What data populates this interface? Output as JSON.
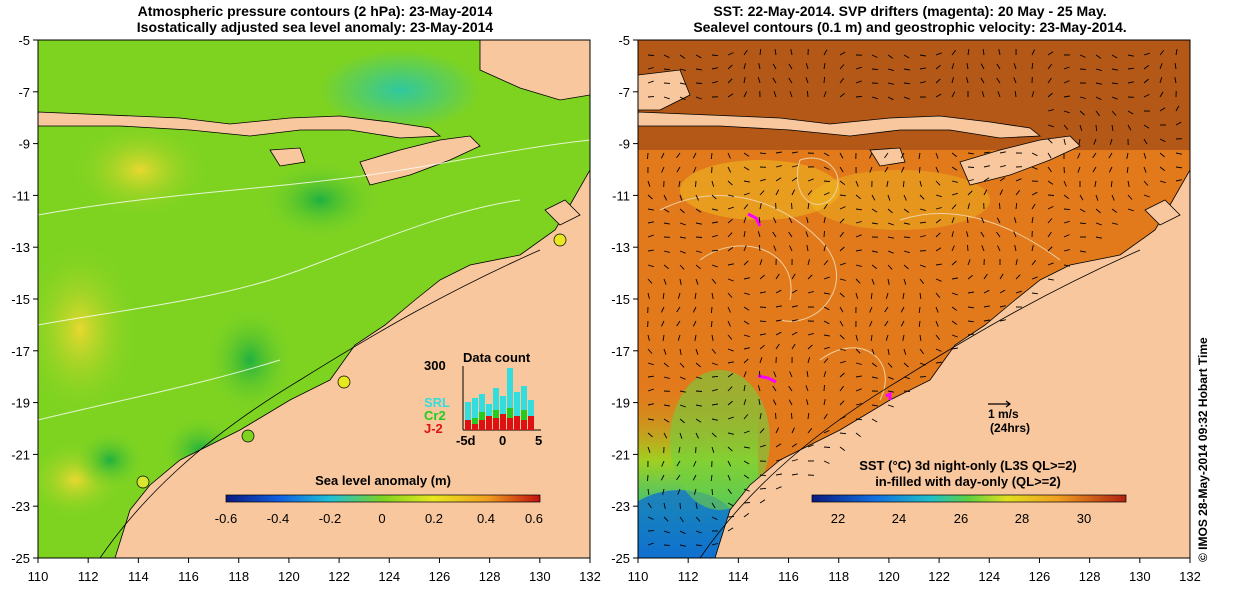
{
  "left_panel": {
    "title_line1": "Atmospheric pressure contours (2 hPa): 23-May-2014",
    "title_line2": "Isostatically adjusted sea level anomaly: 23-May-2014",
    "colorbar_title": "Sea level anomaly (m)",
    "colorbar_ticks": [
      "-0.6",
      "-0.4",
      "-0.2",
      "0",
      "0.2",
      "0.4",
      "0.6"
    ],
    "inset": {
      "title": "Data count",
      "y_max": "300",
      "x_ticks": [
        "-5d",
        "0",
        "5"
      ],
      "legend": [
        {
          "label": "SRL",
          "color": "#33dddd"
        },
        {
          "label": "Cr2",
          "color": "#22cc22"
        },
        {
          "label": "J-2",
          "color": "#dd1111"
        }
      ]
    }
  },
  "right_panel": {
    "title_line1": "SST: 22-May-2014. SVP drifters (magenta): 20 May - 25 May.",
    "title_line2": "Sealevel contours (0.1 m) and geostrophic velocity: 23-May-2014.",
    "vector_scale_line1": "1 m/s",
    "vector_scale_line2": "(24hrs)",
    "colorbar_title_line1": "SST (°C)  3d night-only (L3S QL>=2)",
    "colorbar_title_line2": "in-filled with day-only (QL>=2)",
    "colorbar_ticks": [
      "22",
      "24",
      "26",
      "28",
      "30"
    ]
  },
  "axes": {
    "lat_ticks": [
      "-5",
      "-7",
      "-9",
      "-11",
      "-13",
      "-15",
      "-17",
      "-19",
      "-21",
      "-23",
      "-25"
    ],
    "lon_ticks": [
      "110",
      "112",
      "114",
      "116",
      "118",
      "120",
      "122",
      "124",
      "126",
      "128",
      "130",
      "132"
    ]
  },
  "credit": "© IMOS 28-May-2014 09:32 Hobart Time",
  "colors": {
    "land": "#f8c79e",
    "sla_bg": "#7ed321",
    "sst_bg": "#e27a1c"
  }
}
